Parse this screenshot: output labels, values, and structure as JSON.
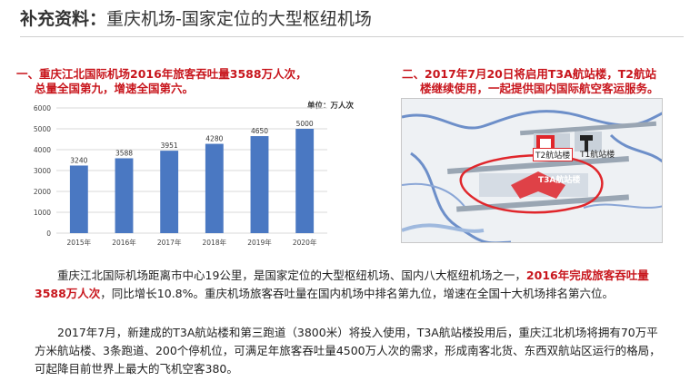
{
  "page": {
    "title_bold": "补充资料：",
    "title_rest": "重庆机场-国家定位的大型枢纽机场"
  },
  "left_section": {
    "heading_line1": "一、重庆江北国际机场2016年旅客吞吐量3588万人次，",
    "heading_line2": "总量全国第九，增速全国第六。",
    "unit_label": "单位：万人次"
  },
  "right_section": {
    "heading_line1": "二、2017年7月20日将启用T3A航站楼，T2航站",
    "heading_line2": "楼继续使用，一起提供国内国际航空客运服务。",
    "map_labels": {
      "t2": "T2航站楼",
      "t1": "T1航站楼",
      "t3a": "T3A航站楼"
    }
  },
  "chart_data": {
    "type": "bar",
    "categories": [
      "2015年",
      "2016年",
      "2017年",
      "2018年",
      "2019年",
      "2020年"
    ],
    "values": [
      3240,
      3588,
      3951,
      4280,
      4650,
      5000
    ],
    "yticks": [
      0,
      1000,
      2000,
      3000,
      4000,
      5000,
      6000
    ],
    "ylim": [
      0,
      6000
    ],
    "bar_color": "#4a78c2",
    "grid": true
  },
  "paragraph1": {
    "part1": "重庆江北国际机场距离市中心19公里，是国家定位的大型枢纽机场、国内八大枢纽机场之一，",
    "highlight": "2016年完成旅客吞吐量3588万人次",
    "part2": "，同比增长10.8%。重庆机场旅客吞吐量在国内机场中排名第九位，增速在全国十大机场排名第六位。"
  },
  "paragraph2": {
    "text": "2017年7月，新建成的T3A航站楼和第三跑道（3800米）将投入使用，T3A航站楼投用后，重庆江北机场将拥有70万平方米航站楼、3条跑道、200个停机位，可满足年旅客吞吐量4500万人次的需求，形成南客北货、东西双航站区运行的格局，可起降目前世界上最大的飞机空客380。"
  },
  "colors": {
    "accent_red": "#c8161d",
    "bar_blue": "#4a78c2"
  }
}
